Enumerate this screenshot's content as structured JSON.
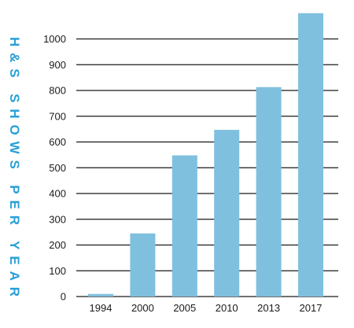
{
  "chart_data": {
    "type": "bar",
    "title": "",
    "xlabel": "",
    "ylabel": "H&S SHOWS PER YEAR",
    "categories": [
      "1994",
      "2000",
      "2005",
      "2010",
      "2013",
      "2017"
    ],
    "values": [
      10,
      245,
      548,
      647,
      813,
      1100
    ],
    "ylim": [
      0,
      1100
    ],
    "yticks": [
      0,
      100,
      200,
      300,
      400,
      500,
      600,
      700,
      800,
      900,
      1000
    ],
    "grid": true,
    "legend": "none",
    "colors": {
      "bar": "#7fc0df",
      "grid": "#1a1a1a",
      "ylabel": "#2a9fd6",
      "tick_text": "#1a1a1a"
    }
  }
}
